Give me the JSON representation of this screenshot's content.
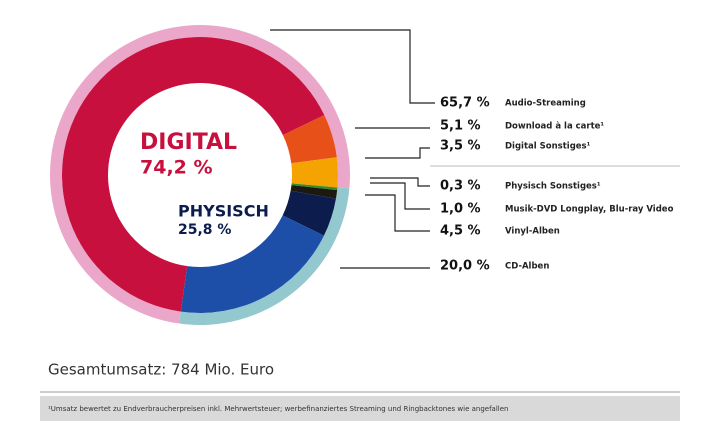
{
  "chart_data": {
    "type": "donut",
    "categories": [
      "Audio-Streaming",
      "Download à la carte¹",
      "Digital Sonstiges¹",
      "Physisch Sonstiges¹",
      "Musik-DVD Longplay, Blu-ray Video",
      "Vinyl-Alben",
      "CD-Alben"
    ],
    "values": [
      65.7,
      5.1,
      3.5,
      0.3,
      1.0,
      4.5,
      20.0
    ],
    "value_labels": [
      "65,7 %",
      "5,1 %",
      "3,5 %",
      "0,3 %",
      "1,0 %",
      "4,5 %",
      "20,0 %"
    ],
    "colors": [
      "#c8103e",
      "#e8501a",
      "#f5a300",
      "#3a8a2a",
      "#1c1a10",
      "#0b1c4d",
      "#1d4fa8"
    ],
    "groups": {
      "names": [
        "DIGITAL",
        "PHYSISCH"
      ],
      "values": [
        74.2,
        25.8
      ],
      "value_labels": [
        "74,2 %",
        "25,8 %"
      ],
      "colors": [
        "#eaa7c9",
        "#94c8cf"
      ],
      "label_colors": [
        "#c8103e",
        "#0b1c4d"
      ]
    },
    "total_label": "Gesamtumsatz: 784 Mio. Euro",
    "footnote": "¹Umsatz bewertet zu Endverbraucherpreisen inkl. Mehrwertsteuer; werbefinanziertes Streaming und Ringbacktones wie angefallen"
  }
}
